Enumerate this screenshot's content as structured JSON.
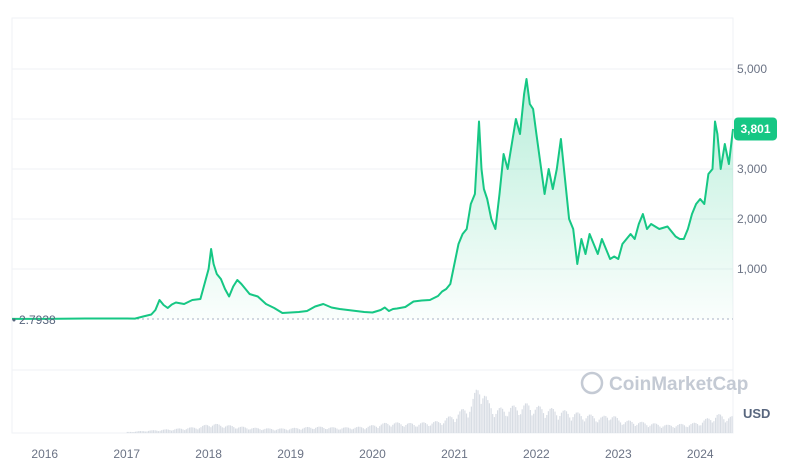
{
  "chart_data": {
    "type": "area",
    "watermark": "CoinMarketCap",
    "currency_label": "USD",
    "current_price_label": "3,801",
    "baseline_label": "2.7938",
    "line_color": "#16c784",
    "y_ticks": [
      "5,000",
      "3,000",
      "2,000",
      "1,000"
    ],
    "y_tick_values": [
      5000,
      3000,
      2000,
      1000
    ],
    "x_ticks": [
      "2016",
      "2017",
      "2018",
      "2019",
      "2020",
      "2021",
      "2022",
      "2023",
      "2024"
    ],
    "x_tick_values": [
      2016.0,
      2017.0,
      2018.0,
      2019.0,
      2020.0,
      2021.0,
      2022.0,
      2023.0,
      2024.0
    ],
    "xlim": [
      2015.6,
      2024.4
    ],
    "ylim": [
      0,
      5000
    ],
    "series": [
      {
        "x": [
          2015.6,
          2016.0,
          2016.5,
          2016.9,
          2017.1,
          2017.2,
          2017.3,
          2017.35,
          2017.4,
          2017.45,
          2017.5,
          2017.55,
          2017.6,
          2017.7,
          2017.8,
          2017.9,
          2017.95,
          2018.0,
          2018.03,
          2018.06,
          2018.1,
          2018.15,
          2018.2,
          2018.25,
          2018.3,
          2018.35,
          2018.4,
          2018.45,
          2018.5,
          2018.6,
          2018.7,
          2018.8,
          2018.9,
          2019.0,
          2019.1,
          2019.2,
          2019.3,
          2019.4,
          2019.5,
          2019.6,
          2019.7,
          2019.8,
          2019.9,
          2020.0,
          2020.1,
          2020.15,
          2020.2,
          2020.25,
          2020.3,
          2020.4,
          2020.5,
          2020.6,
          2020.7,
          2020.8,
          2020.85,
          2020.9,
          2020.95,
          2021.0,
          2021.05,
          2021.1,
          2021.15,
          2021.2,
          2021.25,
          2021.3,
          2021.33,
          2021.36,
          2021.4,
          2021.45,
          2021.5,
          2021.55,
          2021.6,
          2021.65,
          2021.7,
          2021.75,
          2021.8,
          2021.85,
          2021.88,
          2021.92,
          2021.96,
          2022.0,
          2022.05,
          2022.1,
          2022.15,
          2022.2,
          2022.25,
          2022.3,
          2022.35,
          2022.4,
          2022.45,
          2022.5,
          2022.55,
          2022.6,
          2022.65,
          2022.7,
          2022.75,
          2022.8,
          2022.85,
          2022.9,
          2022.95,
          2023.0,
          2023.05,
          2023.1,
          2023.15,
          2023.2,
          2023.25,
          2023.3,
          2023.35,
          2023.4,
          2023.5,
          2023.6,
          2023.7,
          2023.75,
          2023.8,
          2023.85,
          2023.9,
          2023.95,
          2024.0,
          2024.05,
          2024.1,
          2024.15,
          2024.18,
          2024.21,
          2024.25,
          2024.3,
          2024.35,
          2024.4
        ],
        "y": [
          1,
          1,
          10,
          10,
          8,
          50,
          90,
          180,
          380,
          280,
          220,
          290,
          330,
          300,
          380,
          400,
          700,
          1000,
          1400,
          1100,
          900,
          800,
          600,
          450,
          650,
          780,
          700,
          600,
          500,
          450,
          300,
          220,
          120,
          130,
          140,
          160,
          250,
          300,
          230,
          200,
          180,
          160,
          140,
          130,
          180,
          230,
          160,
          200,
          210,
          240,
          350,
          370,
          380,
          460,
          550,
          600,
          700,
          1100,
          1500,
          1700,
          1800,
          2300,
          2500,
          3950,
          3000,
          2600,
          2400,
          2000,
          1800,
          2500,
          3300,
          3000,
          3500,
          4000,
          3700,
          4500,
          4800,
          4300,
          4200,
          3700,
          3100,
          2500,
          3000,
          2600,
          3000,
          3600,
          2800,
          2000,
          1800,
          1100,
          1600,
          1300,
          1700,
          1500,
          1300,
          1600,
          1400,
          1200,
          1250,
          1200,
          1500,
          1600,
          1700,
          1600,
          1900,
          2100,
          1800,
          1900,
          1800,
          1850,
          1650,
          1600,
          1600,
          1800,
          2100,
          2300,
          2400,
          2300,
          2900,
          3000,
          3950,
          3700,
          3000,
          3500,
          3100,
          3801
        ]
      }
    ],
    "volume": {
      "x": [
        2015.6,
        2016.0,
        2016.5,
        2017.0,
        2017.3,
        2017.6,
        2017.9,
        2018.0,
        2018.2,
        2018.5,
        2018.8,
        2019.0,
        2019.3,
        2019.6,
        2019.9,
        2020.2,
        2020.5,
        2020.8,
        2021.0,
        2021.2,
        2021.3,
        2021.4,
        2021.5,
        2021.7,
        2021.9,
        2022.0,
        2022.2,
        2022.4,
        2022.6,
        2022.8,
        2022.9,
        2023.0,
        2023.3,
        2023.6,
        2023.9,
        2024.0,
        2024.2,
        2024.4
      ],
      "y": [
        0,
        0,
        0.01,
        0.02,
        0.05,
        0.08,
        0.12,
        0.18,
        0.15,
        0.1,
        0.08,
        0.09,
        0.12,
        0.1,
        0.12,
        0.2,
        0.18,
        0.22,
        0.35,
        0.55,
        1.0,
        0.6,
        0.45,
        0.5,
        0.55,
        0.5,
        0.45,
        0.4,
        0.35,
        0.3,
        0.38,
        0.25,
        0.2,
        0.15,
        0.18,
        0.22,
        0.35,
        0.3
      ]
    }
  }
}
